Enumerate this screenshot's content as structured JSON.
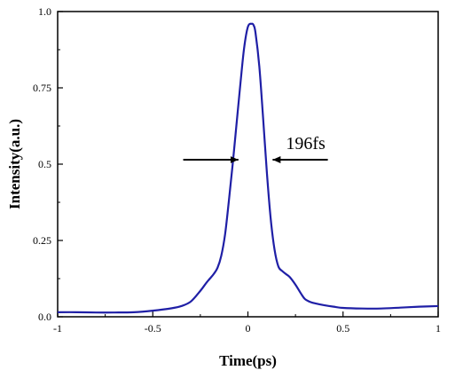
{
  "chart_data": {
    "type": "line",
    "title": "",
    "xlabel": "Time(ps)",
    "ylabel": "Intensity(a.u.)",
    "xlim": [
      -1,
      1
    ],
    "ylim": [
      0,
      1.0
    ],
    "grid": false,
    "x_ticks": [
      -1,
      -0.5,
      0,
      0.5,
      1
    ],
    "x_tick_labels": [
      "-1",
      "-0.5",
      "0",
      "0.5",
      "1"
    ],
    "y_ticks": [
      0,
      0.25,
      0.5,
      0.75,
      1.0
    ],
    "y_tick_labels": [
      "0.0",
      "0.25",
      "0.5",
      "0.75",
      "1.0"
    ],
    "line_color": "#1f1fa6",
    "series": [
      {
        "x": [
          -1.0,
          -0.9,
          -0.8,
          -0.7,
          -0.6,
          -0.5,
          -0.4,
          -0.35,
          -0.3,
          -0.25,
          -0.22,
          -0.2,
          -0.18,
          -0.16,
          -0.14,
          -0.12,
          -0.1,
          -0.08,
          -0.06,
          -0.04,
          -0.02,
          0.0,
          0.02,
          0.03,
          0.04,
          0.06,
          0.08,
          0.1,
          0.12,
          0.14,
          0.16,
          0.18,
          0.2,
          0.22,
          0.25,
          0.28,
          0.3,
          0.33,
          0.36,
          0.4,
          0.45,
          0.5,
          0.6,
          0.7,
          0.8,
          0.9,
          1.0
        ],
        "y": [
          0.015,
          0.015,
          0.014,
          0.014,
          0.015,
          0.02,
          0.028,
          0.035,
          0.05,
          0.085,
          0.11,
          0.125,
          0.14,
          0.16,
          0.2,
          0.27,
          0.38,
          0.5,
          0.63,
          0.76,
          0.88,
          0.95,
          0.96,
          0.955,
          0.93,
          0.82,
          0.65,
          0.47,
          0.32,
          0.22,
          0.165,
          0.15,
          0.14,
          0.13,
          0.105,
          0.075,
          0.058,
          0.048,
          0.043,
          0.038,
          0.033,
          0.029,
          0.027,
          0.027,
          0.03,
          0.033,
          0.035
        ]
      }
    ],
    "annotations": [
      {
        "text": "196fs",
        "x": 0.2,
        "y": 0.57
      }
    ],
    "fwhm_arrows": {
      "level": 0.5,
      "left_tail_x": -0.34,
      "left_head_x": -0.05,
      "right_head_x": 0.13,
      "right_tail_x": 0.42
    }
  }
}
